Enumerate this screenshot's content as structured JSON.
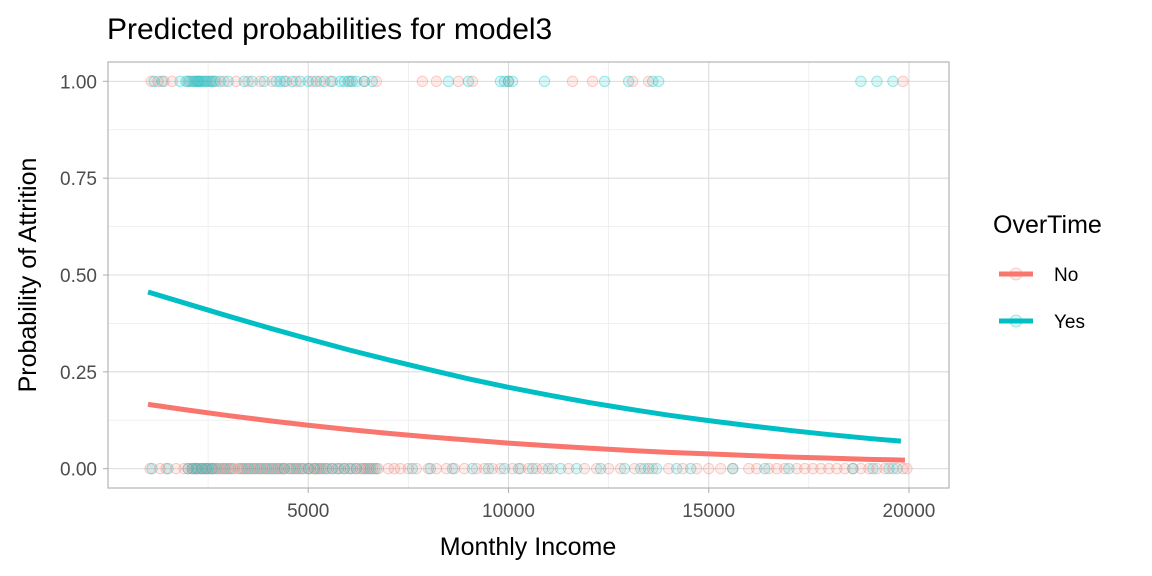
{
  "chart_data": {
    "type": "scatter",
    "title": "Predicted probabilities for model3",
    "xlabel": "Monthly Income",
    "ylabel": "Probability of Attrition",
    "xlim": [
      0,
      21000
    ],
    "ylim": [
      -0.05,
      1.05
    ],
    "x_ticks": [
      5000,
      10000,
      15000,
      20000
    ],
    "x_tick_labels": [
      "5000",
      "10000",
      "15000",
      "20000"
    ],
    "y_ticks": [
      0,
      0.25,
      0.5,
      0.75,
      1
    ],
    "y_tick_labels": [
      "0.00",
      "0.25",
      "0.50",
      "0.75",
      "1.00"
    ],
    "grid": true,
    "legend": {
      "title": "OverTime",
      "position": "right"
    },
    "series": [
      {
        "name": "No",
        "color": "#F8766D",
        "curve": {
          "x": [
            1000,
            2000,
            3000,
            4000,
            5000,
            6000,
            7000,
            8000,
            9000,
            10000,
            11000,
            12000,
            13000,
            14000,
            15000,
            16000,
            17000,
            18000,
            19000,
            19900
          ],
          "y": [
            0.166,
            0.151,
            0.137,
            0.124,
            0.112,
            0.101,
            0.091,
            0.082,
            0.074,
            0.066,
            0.059,
            0.053,
            0.047,
            0.042,
            0.038,
            0.034,
            0.03,
            0.027,
            0.024,
            0.022
          ]
        },
        "points_y1": [
          1080,
          1250,
          1400,
          1600,
          2050,
          2250,
          2500,
          2700,
          2900,
          3200,
          3500,
          3800,
          4100,
          4450,
          4700,
          5100,
          5300,
          5550,
          6050,
          6400,
          6700,
          7850,
          8200,
          8750,
          9100,
          10000,
          11600,
          12100,
          13100,
          13500,
          19850
        ],
        "points_y0": [
          1050,
          1300,
          1450,
          1700,
          1900,
          2000,
          2100,
          2150,
          2200,
          2300,
          2350,
          2400,
          2450,
          2550,
          2600,
          2650,
          2750,
          2800,
          2850,
          2950,
          3000,
          3100,
          3150,
          3250,
          3300,
          3400,
          3450,
          3550,
          3600,
          3700,
          3750,
          3850,
          3900,
          4000,
          4050,
          4150,
          4200,
          4300,
          4350,
          4400,
          4500,
          4600,
          4650,
          4750,
          4800,
          4900,
          5000,
          5050,
          5150,
          5200,
          5250,
          5350,
          5400,
          5500,
          5600,
          5700,
          5800,
          5900,
          6000,
          6100,
          6200,
          6300,
          6350,
          6450,
          6500,
          6600,
          6650,
          6750,
          7000,
          7150,
          7300,
          7500,
          7700,
          8000,
          8200,
          8450,
          8650,
          8900,
          9200,
          9400,
          9600,
          9800,
          10100,
          10300,
          10500,
          10700,
          10850,
          11100,
          11500,
          11900,
          12200,
          12500,
          12800,
          13150,
          13400,
          13600,
          14000,
          14350,
          14700,
          15000,
          15300,
          15600,
          16000,
          16200,
          16500,
          16700,
          16900,
          17200,
          17400,
          17600,
          17800,
          18000,
          18200,
          18400,
          18600,
          18800,
          19000,
          19200,
          19400,
          19600,
          19850,
          19950
        ]
      },
      {
        "name": "Yes",
        "color": "#00BFC4",
        "curve": {
          "x": [
            1000,
            2000,
            3000,
            4000,
            5000,
            6000,
            7000,
            8000,
            9000,
            10000,
            11000,
            12000,
            13000,
            14000,
            15000,
            16000,
            17000,
            18000,
            19000,
            19800
          ],
          "y": [
            0.456,
            0.425,
            0.394,
            0.364,
            0.335,
            0.307,
            0.281,
            0.256,
            0.232,
            0.21,
            0.19,
            0.171,
            0.154,
            0.138,
            0.124,
            0.111,
            0.099,
            0.088,
            0.078,
            0.071
          ]
        },
        "points_y1": [
          1150,
          1350,
          1800,
          1950,
          2000,
          2100,
          2150,
          2200,
          2250,
          2300,
          2350,
          2400,
          2450,
          2550,
          2600,
          2650,
          2800,
          3000,
          3400,
          3600,
          3900,
          4200,
          4300,
          4400,
          4600,
          4800,
          5000,
          5200,
          5400,
          5600,
          5800,
          5900,
          6000,
          6100,
          6200,
          6400,
          6600,
          8500,
          9000,
          9800,
          9900,
          10000,
          10100,
          10900,
          12400,
          13000,
          13600,
          13750,
          18800,
          19200,
          19600
        ],
        "points_y0": [
          1100,
          1500,
          2000,
          2100,
          2200,
          2250,
          2350,
          2450,
          2500,
          2600,
          2700,
          2900,
          3050,
          3350,
          3500,
          3650,
          3800,
          3950,
          4100,
          4250,
          4400,
          4550,
          4700,
          4850,
          5000,
          5150,
          5300,
          5450,
          5600,
          5750,
          5900,
          6050,
          6200,
          6400,
          6550,
          6700,
          7600,
          8050,
          8600,
          9100,
          9500,
          9900,
          10250,
          10600,
          11000,
          11300,
          11700,
          12300,
          12900,
          13300,
          13500,
          13700,
          14200,
          14550,
          15600,
          16400,
          17000,
          18600,
          19100,
          19500,
          19700
        ]
      }
    ]
  }
}
